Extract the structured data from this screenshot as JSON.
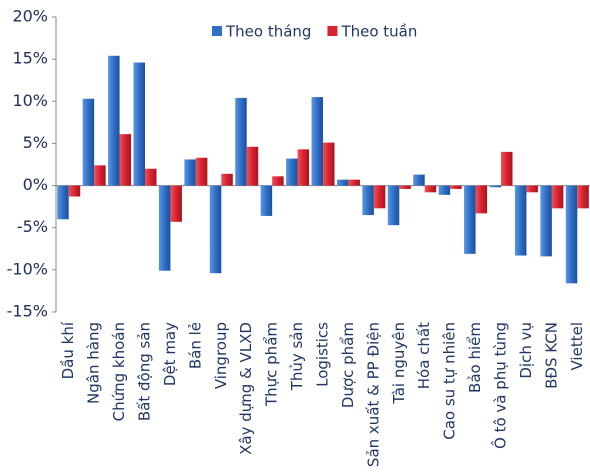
{
  "chart_data": {
    "type": "bar",
    "categories": [
      "Dầu khí",
      "Ngân hàng",
      "Chứng khoán",
      "Bất động sản",
      "Dệt may",
      "Bán lẻ",
      "Vingroup",
      "Xây dựng & VLXD",
      "Thực phẩm",
      "Thủy sản",
      "Logistics",
      "Dược phẩm",
      "Sản xuất & PP Điện",
      "Tài nguyên",
      "Hóa chất",
      "Cao su tự nhiên",
      "Bảo hiểm",
      "Ô tô và phụ tùng",
      "Dịch vụ",
      "BĐS KCN",
      "Viettel"
    ],
    "series": [
      {
        "name": "Theo tháng",
        "color": "#2f6fc6",
        "values": [
          -4.0,
          10.3,
          15.4,
          14.6,
          -10.1,
          3.1,
          -10.4,
          10.4,
          -3.6,
          3.2,
          10.5,
          0.7,
          -3.5,
          -4.7,
          1.3,
          -1.1,
          -8.1,
          -0.2,
          -8.3,
          -8.4,
          -11.6
        ]
      },
      {
        "name": "Theo tuần",
        "color": "#d8232f",
        "values": [
          -1.3,
          2.4,
          6.1,
          2.0,
          -4.3,
          3.3,
          1.4,
          4.6,
          1.1,
          4.3,
          5.1,
          0.7,
          -2.7,
          -0.4,
          -0.8,
          -0.4,
          -3.3,
          4.0,
          -0.8,
          -2.7,
          -2.7
        ]
      }
    ],
    "ylim": [
      -15,
      20
    ],
    "yticks": [
      {
        "value": -15,
        "label": "-15%"
      },
      {
        "value": -10,
        "label": "-10%"
      },
      {
        "value": -5,
        "label": "-5%"
      },
      {
        "value": 0,
        "label": "0%"
      },
      {
        "value": 5,
        "label": "5%"
      },
      {
        "value": 10,
        "label": "10%"
      },
      {
        "value": 15,
        "label": "15%"
      },
      {
        "value": 20,
        "label": "20%"
      }
    ],
    "grid": false,
    "legend": "top"
  }
}
